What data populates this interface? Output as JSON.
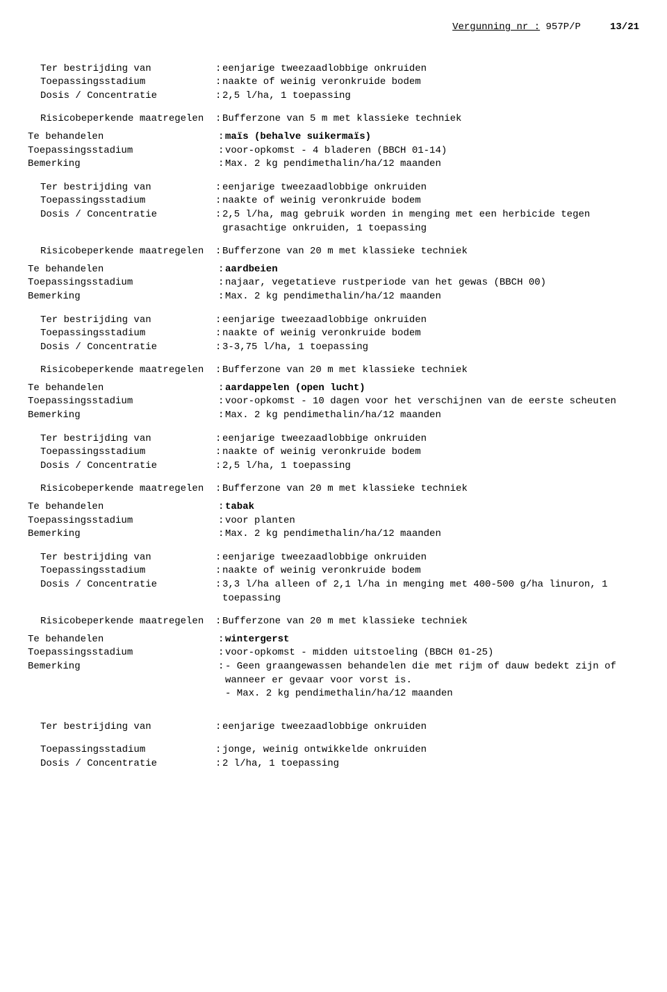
{
  "header": {
    "label": "Vergunning nr :",
    "number": "957P/P",
    "page": "13/21"
  },
  "labels": {
    "terBestrijding": "Ter bestrijding van",
    "toepassingsstadium": "Toepassingsstadium",
    "dosis": "Dosis / Concentratie",
    "risico": "Risicobeperkende maatregelen",
    "teBehandelen": "Te behandelen",
    "bemerking": "Bemerking"
  },
  "b1": {
    "ter": "eenjarige tweezaadlobbige onkruiden",
    "stad": "naakte of weinig veronkruide bodem",
    "dosis": "2,5 l/ha, 1 toepassing",
    "risico": "Bufferzone van 5 m met klassieke techniek"
  },
  "c1": {
    "crop": "maïs (behalve suikermaïs)",
    "stad": "voor-opkomst - 4 bladeren (BBCH 01-14)",
    "bem": "Max. 2 kg pendimethalin/ha/12 maanden"
  },
  "b2": {
    "ter": "eenjarige tweezaadlobbige onkruiden",
    "stad": "naakte of weinig veronkruide bodem",
    "dosis": "2,5 l/ha, mag gebruik worden in menging met een herbicide tegen grasachtige onkruiden, 1 toepassing",
    "risico": "Bufferzone van 20 m met klassieke techniek"
  },
  "c2": {
    "crop": "aardbeien",
    "stad": "najaar, vegetatieve rustperiode van het gewas (BBCH 00)",
    "bem": "Max. 2 kg pendimethalin/ha/12 maanden"
  },
  "b3": {
    "ter": "eenjarige tweezaadlobbige onkruiden",
    "stad": "naakte of weinig veronkruide bodem",
    "dosis": "3-3,75 l/ha, 1 toepassing",
    "risico": "Bufferzone van 20 m met klassieke techniek"
  },
  "c3": {
    "crop": "aardappelen (open lucht)",
    "stad": "voor-opkomst - 10 dagen voor het verschijnen van de eerste scheuten",
    "bem": "Max. 2 kg pendimethalin/ha/12 maanden"
  },
  "b4": {
    "ter": "eenjarige tweezaadlobbige onkruiden",
    "stad": "naakte of weinig veronkruide bodem",
    "dosis": "2,5 l/ha, 1 toepassing",
    "risico": "Bufferzone van 20 m met klassieke techniek"
  },
  "c4": {
    "crop": "tabak",
    "stad": "voor planten",
    "bem": "Max. 2 kg pendimethalin/ha/12 maanden"
  },
  "b5": {
    "ter": "eenjarige tweezaadlobbige onkruiden",
    "stad": "naakte of weinig veronkruide bodem",
    "dosis": "3,3 l/ha alleen of 2,1 l/ha in menging met 400-500 g/ha linuron, 1 toepassing",
    "risico": "Bufferzone van 20 m met klassieke techniek"
  },
  "c5": {
    "crop": "wintergerst",
    "stad": "voor-opkomst - midden uitstoeling (BBCH 01-25)",
    "bem": "- Geen graangewassen behandelen die met rijm of dauw bedekt zijn of wanneer er gevaar voor vorst is.\n- Max. 2 kg pendimethalin/ha/12 maanden"
  },
  "b6": {
    "ter": "eenjarige tweezaadlobbige onkruiden",
    "stad": "jonge, weinig ontwikkelde onkruiden",
    "dosis": "2 l/ha, 1 toepassing"
  }
}
